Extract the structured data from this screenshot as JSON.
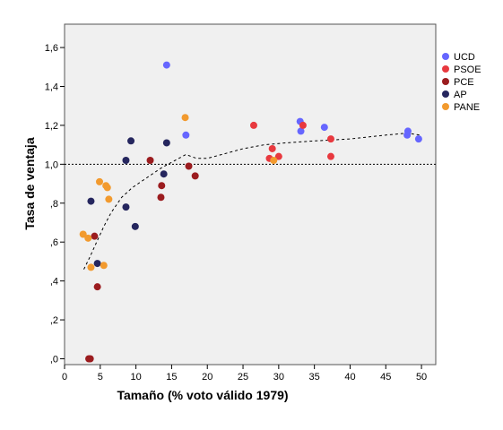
{
  "chart_data": {
    "type": "scatter",
    "xlabel": "Tamaño (% voto válido 1979)",
    "ylabel": "Tasa de ventaja",
    "xlim": [
      0,
      52
    ],
    "ylim": [
      -0.03,
      1.72
    ],
    "x_ticks": [
      0,
      5,
      10,
      15,
      20,
      25,
      30,
      35,
      40,
      45,
      50
    ],
    "x_tick_labels": [
      "0",
      "5",
      "10",
      "15",
      "20",
      "25",
      "30",
      "35",
      "40",
      "45",
      "50"
    ],
    "y_ticks": [
      0,
      0.2,
      0.4,
      0.6,
      0.8,
      1.0,
      1.2,
      1.4,
      1.6
    ],
    "y_tick_labels": [
      ",0",
      ",2",
      ",4",
      ",6",
      ",8",
      "1,0",
      "1,2",
      "1,4",
      "1,6"
    ],
    "reference_line": {
      "y": 1.0,
      "style": "dotted"
    },
    "legend_position": "right",
    "series": [
      {
        "name": "UCD",
        "color": "#6666ff",
        "points": [
          [
            14.3,
            1.51
          ],
          [
            17.0,
            1.15
          ],
          [
            33.0,
            1.22
          ],
          [
            33.1,
            1.17
          ],
          [
            36.4,
            1.19
          ],
          [
            48.1,
            1.17
          ],
          [
            48.0,
            1.15
          ],
          [
            49.6,
            1.13
          ]
        ]
      },
      {
        "name": "PSOE",
        "color": "#e8393f",
        "points": [
          [
            26.5,
            1.2
          ],
          [
            29.1,
            1.08
          ],
          [
            28.7,
            1.03
          ],
          [
            30.0,
            1.04
          ],
          [
            33.4,
            1.2
          ],
          [
            37.3,
            1.13
          ],
          [
            37.3,
            1.04
          ]
        ]
      },
      {
        "name": "PCE",
        "color": "#9b1c1f",
        "points": [
          [
            3.4,
            0.0
          ],
          [
            3.6,
            0.0
          ],
          [
            4.2,
            0.63
          ],
          [
            4.6,
            0.37
          ],
          [
            12.0,
            1.02
          ],
          [
            13.6,
            0.89
          ],
          [
            13.5,
            0.83
          ],
          [
            17.4,
            0.99
          ],
          [
            18.3,
            0.94
          ]
        ]
      },
      {
        "name": "AP",
        "color": "#25265e",
        "points": [
          [
            3.7,
            0.81
          ],
          [
            4.6,
            0.49
          ],
          [
            8.6,
            1.02
          ],
          [
            9.3,
            1.12
          ],
          [
            8.6,
            0.78
          ],
          [
            9.9,
            0.68
          ],
          [
            13.9,
            0.95
          ],
          [
            14.3,
            1.11
          ]
        ]
      },
      {
        "name": "PANE",
        "color": "#f29a2e",
        "points": [
          [
            2.6,
            0.64
          ],
          [
            3.3,
            0.62
          ],
          [
            3.7,
            0.47
          ],
          [
            4.9,
            0.91
          ],
          [
            5.5,
            0.48
          ],
          [
            5.8,
            0.89
          ],
          [
            6.0,
            0.88
          ],
          [
            6.2,
            0.82
          ],
          [
            16.9,
            1.24
          ],
          [
            29.3,
            1.02
          ]
        ]
      }
    ],
    "trend_line": {
      "style": "dashed",
      "x": [
        2.7,
        3.5,
        4.5,
        5.5,
        6.5,
        8.0,
        9.5,
        11.5,
        13.5,
        15.5,
        17.0,
        18.5,
        20.0,
        22.0,
        25.0,
        28.0,
        31.0,
        35.0,
        40.0,
        45.0,
        48.0,
        49.8
      ],
      "y": [
        0.46,
        0.52,
        0.6,
        0.68,
        0.75,
        0.83,
        0.88,
        0.93,
        0.98,
        1.02,
        1.05,
        1.03,
        1.03,
        1.05,
        1.08,
        1.1,
        1.11,
        1.12,
        1.13,
        1.15,
        1.16,
        1.15
      ]
    }
  }
}
